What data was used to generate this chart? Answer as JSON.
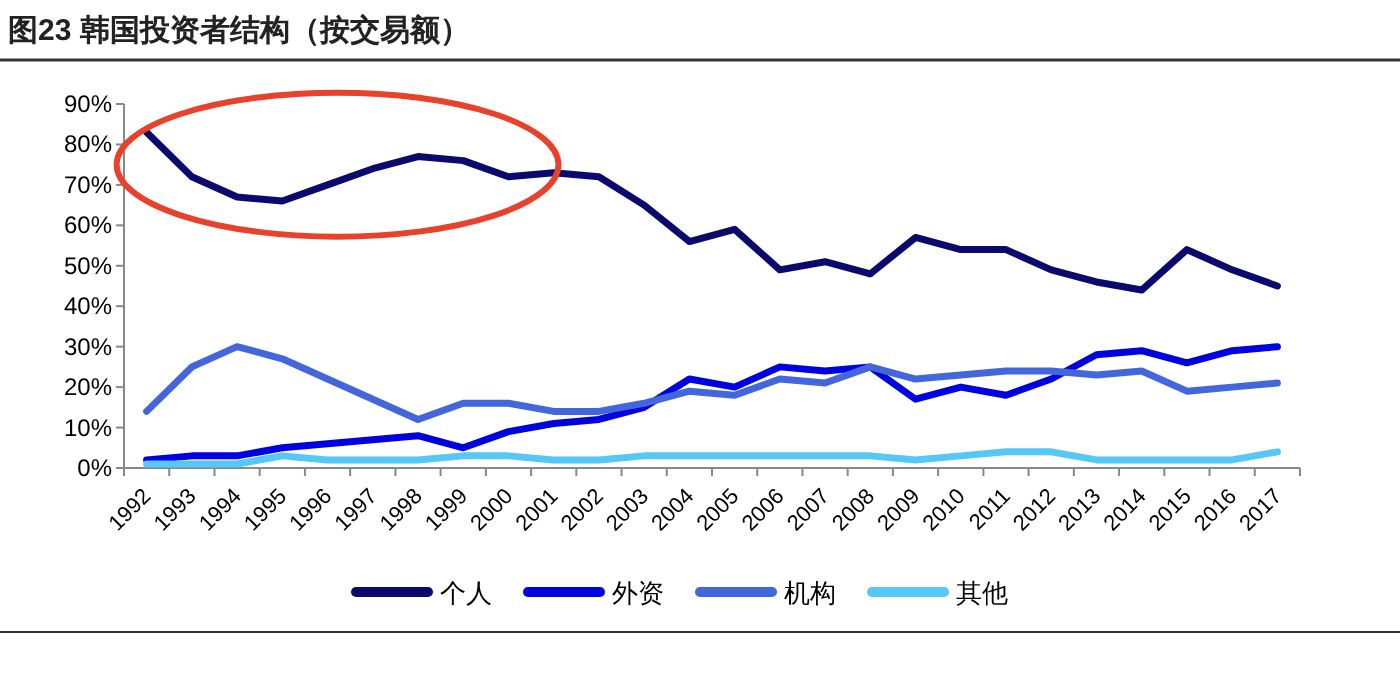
{
  "chart_data": {
    "type": "line",
    "title": "图23 韩国投资者结构（按交易额）",
    "categories": [
      "1992",
      "1993",
      "1994",
      "1995",
      "1996",
      "1997",
      "1998",
      "1999",
      "2000",
      "2001",
      "2002",
      "2003",
      "2004",
      "2005",
      "2006",
      "2007",
      "2008",
      "2009",
      "2010",
      "2011",
      "2012",
      "2013",
      "2014",
      "2015",
      "2016",
      "2017"
    ],
    "series": [
      {
        "name": "个人",
        "color": "#0a0a6e",
        "values": [
          83,
          72,
          67,
          66,
          70,
          74,
          77,
          76,
          72,
          73,
          72,
          65,
          56,
          59,
          49,
          51,
          48,
          57,
          54,
          54,
          49,
          46,
          44,
          54,
          49,
          45
        ]
      },
      {
        "name": "外资",
        "color": "#0000e0",
        "values": [
          2,
          3,
          3,
          5,
          6,
          7,
          8,
          5,
          9,
          11,
          12,
          15,
          22,
          20,
          25,
          24,
          25,
          17,
          20,
          18,
          22,
          28,
          29,
          26,
          29,
          30
        ]
      },
      {
        "name": "机构",
        "color": "#4466dd",
        "values": [
          14,
          25,
          30,
          27,
          22,
          17,
          12,
          16,
          16,
          14,
          14,
          16,
          19,
          18,
          22,
          21,
          25,
          22,
          23,
          24,
          24,
          23,
          24,
          19,
          20,
          21
        ]
      },
      {
        "name": "其他",
        "color": "#55c8f5",
        "values": [
          1,
          1,
          1,
          3,
          2,
          2,
          2,
          3,
          3,
          2,
          2,
          3,
          3,
          3,
          3,
          3,
          3,
          2,
          3,
          4,
          4,
          2,
          2,
          2,
          2,
          4
        ]
      }
    ],
    "ylim": [
      0,
      90
    ],
    "yticks": [
      {
        "value": 0,
        "label": "0%"
      },
      {
        "value": 10,
        "label": "10%"
      },
      {
        "value": 20,
        "label": "20%"
      },
      {
        "value": 30,
        "label": "30%"
      },
      {
        "value": 40,
        "label": "40%"
      },
      {
        "value": 50,
        "label": "50%"
      },
      {
        "value": 60,
        "label": "60%"
      },
      {
        "value": 70,
        "label": "70%"
      },
      {
        "value": 80,
        "label": "80%"
      },
      {
        "value": 90,
        "label": "90%"
      }
    ],
    "legend": "bottom"
  }
}
